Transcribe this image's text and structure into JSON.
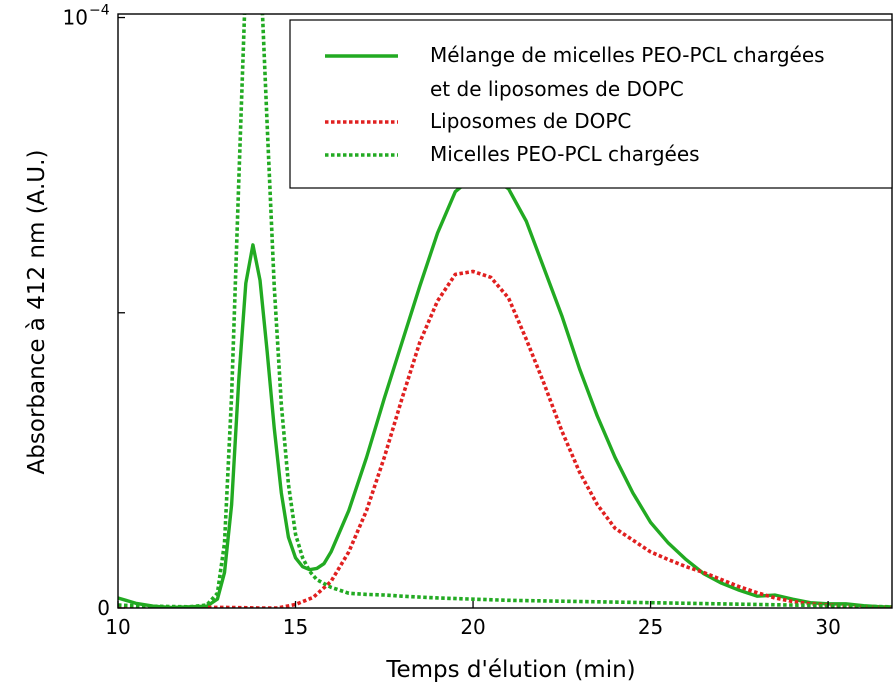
{
  "chart_data": {
    "type": "line",
    "xlabel": "Temps d'élution (min)",
    "ylabel": "Absorbance à 412 nm (A.U.)",
    "xlim": [
      10,
      31.8
    ],
    "ylim": [
      0,
      0.0001006
    ],
    "x_ticks": [
      10,
      15,
      20,
      25,
      30
    ],
    "y_ticks": [
      {
        "value": 0,
        "label": "0"
      },
      {
        "value": 5e-05,
        "label": ""
      },
      {
        "value": 0.0001,
        "label": "10",
        "exponent": "-4"
      }
    ],
    "grid": false,
    "legend_position": "top-right",
    "series": [
      {
        "name_lines": [
          "Mélange de micelles PEO-PCL chargées",
          "et de liposomes de DOPC"
        ],
        "color": "#22aa22",
        "style": "solid",
        "x": [
          10,
          10.5,
          11,
          11.5,
          12,
          12.5,
          12.8,
          13.0,
          13.2,
          13.4,
          13.6,
          13.8,
          14.0,
          14.2,
          14.4,
          14.6,
          14.8,
          15.0,
          15.2,
          15.4,
          15.6,
          15.8,
          16.0,
          16.5,
          17,
          17.5,
          18,
          18.5,
          19,
          19.5,
          20,
          20.5,
          21,
          21.5,
          22,
          22.5,
          23,
          23.5,
          24,
          24.5,
          25,
          25.5,
          26,
          26.5,
          27,
          27.5,
          28,
          28.5,
          29,
          29.5,
          30,
          30.5,
          31,
          31.5,
          31.8
        ],
        "y": [
          1.7e-06,
          8e-07,
          3e-07,
          1e-07,
          2e-07,
          3e-07,
          1.5e-06,
          6e-06,
          1.75e-05,
          3.85e-05,
          5.5e-05,
          6.15e-05,
          5.55e-05,
          4.35e-05,
          3.05e-05,
          1.95e-05,
          1.2e-05,
          8.5e-06,
          7e-06,
          6.5e-06,
          6.7e-06,
          7.5e-06,
          9.5e-06,
          1.65e-05,
          2.55e-05,
          3.55e-05,
          4.5e-05,
          5.45e-05,
          6.35e-05,
          7.05e-05,
          7.3e-05,
          7.3e-05,
          7.1e-05,
          6.55e-05,
          5.75e-05,
          4.95e-05,
          4.05e-05,
          3.25e-05,
          2.55e-05,
          1.95e-05,
          1.45e-05,
          1.1e-05,
          8.2e-06,
          5.8e-06,
          4.2e-06,
          3e-06,
          2e-06,
          2.2e-06,
          1.5e-06,
          9e-07,
          7e-07,
          7e-07,
          4e-07,
          2e-07,
          2e-07
        ]
      },
      {
        "name_lines": [
          "Liposomes de DOPC"
        ],
        "color": "#e02020",
        "style": "dotted",
        "x": [
          10,
          11,
          12,
          13,
          14,
          14.5,
          15.0,
          15.5,
          16.0,
          16.5,
          17,
          17.5,
          18,
          18.5,
          19,
          19.5,
          20,
          20.5,
          21,
          21.5,
          22,
          22.5,
          23,
          23.5,
          24,
          24.5,
          25,
          25.5,
          26,
          26.5,
          27,
          27.5,
          28,
          28.5,
          29,
          29.5,
          30,
          30.5,
          31,
          31.5,
          31.8
        ],
        "y": [
          4e-07,
          2e-07,
          1e-07,
          1e-07,
          0.0,
          0.0,
          6e-07,
          1.8e-06,
          4.5e-06,
          9.5e-06,
          1.65e-05,
          2.55e-05,
          3.55e-05,
          4.5e-05,
          5.2e-05,
          5.65e-05,
          5.7e-05,
          5.6e-05,
          5.25e-05,
          4.55e-05,
          3.8e-05,
          3e-05,
          2.3e-05,
          1.75e-05,
          1.35e-05,
          1.15e-05,
          9.5e-06,
          8.2e-06,
          7e-06,
          6e-06,
          4.8e-06,
          3.6e-06,
          2.6e-06,
          1.7e-06,
          1.1e-06,
          7e-07,
          5e-07,
          3e-07,
          2e-07,
          1e-07,
          1e-07
        ]
      },
      {
        "name_lines": [
          "Micelles PEO-PCL chargées"
        ],
        "color": "#22aa22",
        "style": "dotted",
        "x": [
          10,
          11,
          12,
          12.5,
          12.8,
          13.0,
          13.2,
          13.4,
          13.6,
          13.8,
          14.0,
          14.2,
          14.4,
          14.6,
          14.8,
          15.0,
          15.2,
          15.4,
          15.6,
          16.0,
          16.5,
          17,
          17.5,
          18,
          19,
          20,
          21,
          22,
          23,
          24,
          25,
          26,
          27,
          28,
          29,
          30,
          31,
          31.8
        ],
        "y": [
          5e-07,
          3e-07,
          2e-07,
          5e-07,
          2.5e-06,
          1.1e-05,
          3.6e-05,
          7.2e-05,
          0.000107,
          0.0001225,
          0.0001105,
          8.2e-05,
          5.45e-05,
          3.45e-05,
          2.1e-05,
          1.25e-05,
          8.5e-06,
          6.2e-06,
          4.8e-06,
          3.5e-06,
          2.5e-06,
          2.3e-06,
          2.2e-06,
          2e-06,
          1.7e-06,
          1.5e-06,
          1.3e-06,
          1.2e-06,
          1.1e-06,
          1e-06,
          9e-07,
          8e-07,
          7e-07,
          6e-07,
          5e-07,
          4e-07,
          3e-07,
          2e-07
        ]
      }
    ]
  }
}
